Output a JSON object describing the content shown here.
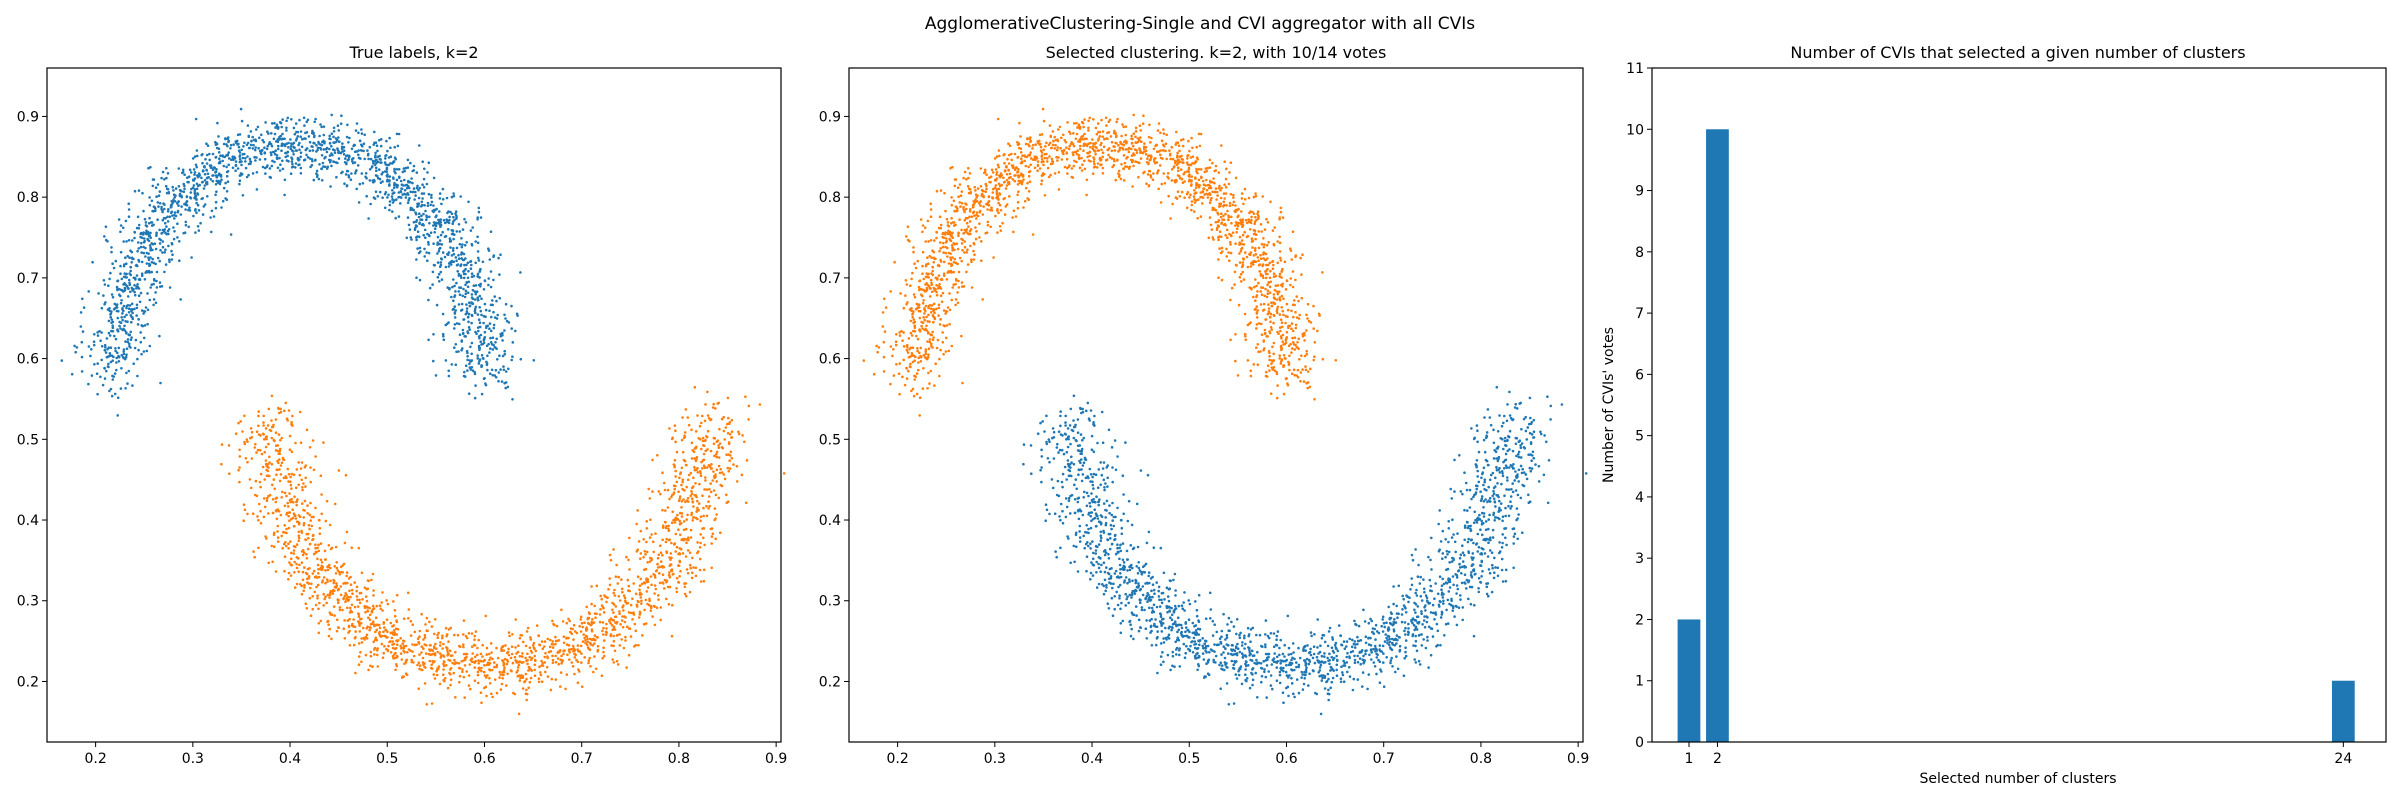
{
  "figure": {
    "suptitle": "AgglomerativeClustering-Single and CVI aggregator with all CVIs"
  },
  "chart_data": [
    {
      "type": "scatter",
      "title": "True labels, k=2",
      "xlabel": "",
      "ylabel": "",
      "xlim": [
        0.15,
        0.905
      ],
      "ylim": [
        0.125,
        0.96
      ],
      "xticks": [
        0.2,
        0.3,
        0.4,
        0.5,
        0.6,
        0.7,
        0.8,
        0.9
      ],
      "yticks": [
        0.2,
        0.3,
        0.4,
        0.5,
        0.6,
        0.7,
        0.8,
        0.9
      ],
      "series": [
        {
          "color": "#1f77b4",
          "shape": "upper-arc",
          "points": 2000
        },
        {
          "color": "#ff7f0e",
          "shape": "lower-arc",
          "points": 2000
        }
      ]
    },
    {
      "type": "scatter",
      "title": "Selected clustering. k=2, with 10/14 votes",
      "xlabel": "",
      "ylabel": "",
      "xlim": [
        0.15,
        0.905
      ],
      "ylim": [
        0.125,
        0.96
      ],
      "xticks": [
        0.2,
        0.3,
        0.4,
        0.5,
        0.6,
        0.7,
        0.8,
        0.9
      ],
      "yticks": [
        0.2,
        0.3,
        0.4,
        0.5,
        0.6,
        0.7,
        0.8,
        0.9
      ],
      "series": [
        {
          "color": "#ff7f0e",
          "shape": "upper-arc",
          "points": 2000
        },
        {
          "color": "#1f77b4",
          "shape": "lower-arc",
          "points": 2000
        }
      ]
    },
    {
      "type": "bar",
      "title": "Number of CVIs that selected a given number of clusters",
      "xlabel": "Selected number of clusters",
      "ylabel": "Number of CVIs' votes",
      "categories": [
        1,
        2,
        24
      ],
      "values": [
        2,
        10,
        1
      ],
      "xlim": [
        -0.3,
        25.5
      ],
      "ylim": [
        0,
        11
      ],
      "xticks": [
        1,
        2,
        24
      ],
      "yticks": [
        0,
        1,
        2,
        3,
        4,
        5,
        6,
        7,
        8,
        9,
        10,
        11
      ],
      "color": "#1f77b4"
    }
  ]
}
